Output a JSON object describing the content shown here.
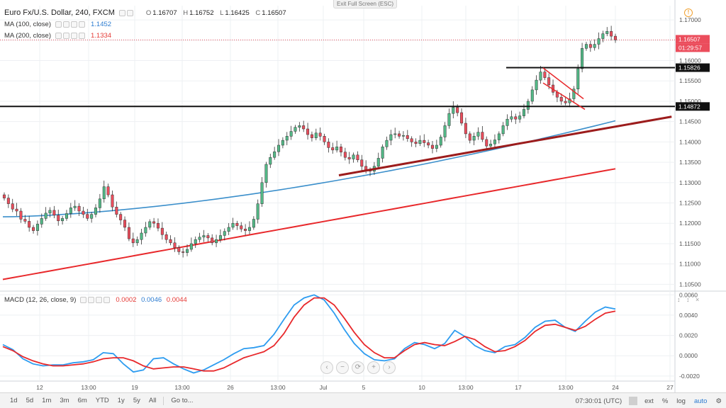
{
  "ui": {
    "exit_fullscreen": "Exit Full Screen (ESC)",
    "symbol": "Euro Fx/U.S. Dollar, 240, FXCM",
    "ohlc": {
      "O": "1.16707",
      "H": "1.16752",
      "L": "1.16425",
      "C": "1.16507"
    },
    "ohlc_labels": {
      "O": "O",
      "H": "H",
      "L": "L",
      "C": "C"
    },
    "ma100": {
      "label": "MA (100, close)",
      "value": "1.1452"
    },
    "ma200": {
      "label": "MA (200, close)",
      "value": "1.1334"
    },
    "macd": {
      "label": "MACD (12, 26, close, 9)",
      "hist": "0.0002",
      "macd": "0.0046",
      "signal": "0.0044"
    },
    "timeframes": [
      "1d",
      "5d",
      "1m",
      "3m",
      "6m",
      "YTD",
      "1y",
      "5y",
      "All"
    ],
    "goto": "Go to...",
    "clock": "07:30:01 (UTC)",
    "bottom_right": [
      "ext",
      "%",
      "log",
      "auto"
    ],
    "nav_glyphs": [
      "‹",
      "−",
      "⟳",
      "+",
      "›"
    ],
    "alert_glyph": "!",
    "pane_glyphs": "↕ ↕ ×",
    "gear_glyph": "⚙"
  },
  "colors": {
    "up_candle": "#53b987",
    "down_candle": "#eb4d5c",
    "ma100": "#3b8fcb",
    "ma200": "#e8282b",
    "trendline": "#9c1c1c",
    "channel": "#e8282b",
    "resistance": "#111111",
    "macd_line": "#2d9cf0",
    "signal_line": "#e8282b",
    "grid": "#eef0f3"
  },
  "chart_data": [
    {
      "type": "candlestick",
      "title": "Euro Fx/U.S. Dollar, 240, FXCM",
      "ylim": [
        1.1035,
        1.1735
      ],
      "y_ticks": [
        "1.17000",
        "1.16500",
        "1.16000",
        "1.15500",
        "1.15000",
        "1.14500",
        "1.14000",
        "1.13500",
        "1.13000",
        "1.12500",
        "1.12000",
        "1.11500",
        "1.11000",
        "1.10500"
      ],
      "x_ticks": [
        "12",
        "13:00",
        "19",
        "13:00",
        "26",
        "13:00",
        "Jul",
        "5",
        "10",
        "13:00",
        "17",
        "13:00",
        "24",
        "27"
      ],
      "price_labels": [
        {
          "text": "1.16507",
          "value": 1.16507,
          "role": "last"
        },
        {
          "text": "01:29:57",
          "value": 1.16507,
          "role": "countdown"
        },
        {
          "text": "1.15826",
          "value": 1.15826,
          "role": "level"
        },
        {
          "text": "1.14872",
          "value": 1.14872,
          "role": "level"
        }
      ],
      "close_series": [
        1.1262,
        1.1248,
        1.1235,
        1.123,
        1.121,
        1.1205,
        1.119,
        1.1182,
        1.1198,
        1.1212,
        1.1225,
        1.1232,
        1.122,
        1.1206,
        1.1212,
        1.1224,
        1.1238,
        1.1242,
        1.123,
        1.1222,
        1.1212,
        1.1222,
        1.1238,
        1.126,
        1.129,
        1.127,
        1.124,
        1.1222,
        1.1208,
        1.119,
        1.1162,
        1.1152,
        1.116,
        1.1176,
        1.119,
        1.1204,
        1.12,
        1.1188,
        1.1172,
        1.116,
        1.1152,
        1.114,
        1.113,
        1.1128,
        1.1136,
        1.115,
        1.116,
        1.1166,
        1.117,
        1.1164,
        1.1152,
        1.116,
        1.117,
        1.118,
        1.119,
        1.12,
        1.1194,
        1.1186,
        1.1182,
        1.119,
        1.121,
        1.1248,
        1.13,
        1.1345,
        1.1362,
        1.1376,
        1.1392,
        1.1404,
        1.1414,
        1.1426,
        1.1436,
        1.144,
        1.1432,
        1.1418,
        1.141,
        1.1422,
        1.1414,
        1.14,
        1.1386,
        1.138,
        1.1388,
        1.1375,
        1.1362,
        1.1358,
        1.1368,
        1.1356,
        1.134,
        1.133,
        1.1328,
        1.134,
        1.136,
        1.1388,
        1.1404,
        1.1418,
        1.142,
        1.1414,
        1.1416,
        1.1408,
        1.14,
        1.1396,
        1.1404,
        1.1398,
        1.1392,
        1.1384,
        1.1392,
        1.1412,
        1.144,
        1.147,
        1.1485,
        1.1472,
        1.1446,
        1.142,
        1.1404,
        1.1414,
        1.1424,
        1.1406,
        1.139,
        1.1395,
        1.1405,
        1.142,
        1.144,
        1.1456,
        1.1462,
        1.1456,
        1.1464,
        1.148,
        1.15,
        1.1528,
        1.1552,
        1.1572,
        1.1558,
        1.154,
        1.1522,
        1.151,
        1.15,
        1.1496,
        1.1506,
        1.153,
        1.158,
        1.163,
        1.164,
        1.1632,
        1.164,
        1.1654,
        1.1666,
        1.1672,
        1.166,
        1.1651
      ],
      "ma100": {
        "start": 1.1216,
        "end": 1.1452
      },
      "ma200": {
        "start": 1.1062,
        "end": 1.1334
      },
      "annotations": [
        {
          "kind": "resistance",
          "value": 1.14872
        },
        {
          "kind": "resistance",
          "value": 1.15826
        },
        {
          "kind": "trendline",
          "from": [
            0.5,
            1.1318
          ],
          "to": [
            0.995,
            1.1462
          ]
        },
        {
          "kind": "flag_channel"
        }
      ]
    },
    {
      "type": "line",
      "title": "MACD (12, 26, close, 9)",
      "ylim": [
        -0.0025,
        0.0063
      ],
      "y_ticks": [
        "0.0060",
        "0.0040",
        "0.0020",
        "0.0000",
        "-0.0020"
      ],
      "series": [
        {
          "name": "MACD",
          "values": [
            0.0011,
            0.0006,
            -0.0003,
            -0.0008,
            -0.001,
            -0.0009,
            -0.0009,
            -0.0007,
            -0.0006,
            -0.0004,
            0.0003,
            0.0002,
            -0.0008,
            -0.0016,
            -0.0014,
            -0.0003,
            -0.0002,
            -0.0008,
            -0.0013,
            -0.0017,
            -0.0014,
            -0.0009,
            -0.0004,
            0.0002,
            0.0007,
            0.0008,
            0.001,
            0.0021,
            0.0036,
            0.005,
            0.0057,
            0.006,
            0.0055,
            0.0042,
            0.0026,
            0.0012,
            0.0002,
            -0.0004,
            -0.0005,
            -0.0003,
            0.0007,
            0.0013,
            0.0011,
            0.0007,
            0.0012,
            0.0025,
            0.0019,
            0.001,
            0.0005,
            0.0003,
            0.0009,
            0.0011,
            0.0018,
            0.0028,
            0.0034,
            0.0035,
            0.0028,
            0.0024,
            0.0034,
            0.0043,
            0.0048,
            0.0046
          ]
        },
        {
          "name": "Signal",
          "values": [
            0.0009,
            0.0005,
            -0.0001,
            -0.0005,
            -0.0008,
            -0.001,
            -0.001,
            -0.0009,
            -0.0008,
            -0.0006,
            -0.0003,
            -0.0002,
            -0.0002,
            -0.0005,
            -0.001,
            -0.0013,
            -0.0012,
            -0.0011,
            -0.0011,
            -0.0013,
            -0.0015,
            -0.0015,
            -0.0012,
            -0.0007,
            -0.0002,
            0.0001,
            0.0004,
            0.001,
            0.0022,
            0.0038,
            0.005,
            0.0057,
            0.0057,
            0.005,
            0.0037,
            0.0023,
            0.0011,
            0.0003,
            -0.0002,
            -0.0002,
            0.0005,
            0.0011,
            0.0013,
            0.0011,
            0.001,
            0.0014,
            0.0019,
            0.0016,
            0.0009,
            0.0004,
            0.0005,
            0.0009,
            0.0015,
            0.0024,
            0.003,
            0.0031,
            0.0028,
            0.0025,
            0.0029,
            0.0036,
            0.0042,
            0.0044
          ]
        }
      ]
    }
  ]
}
